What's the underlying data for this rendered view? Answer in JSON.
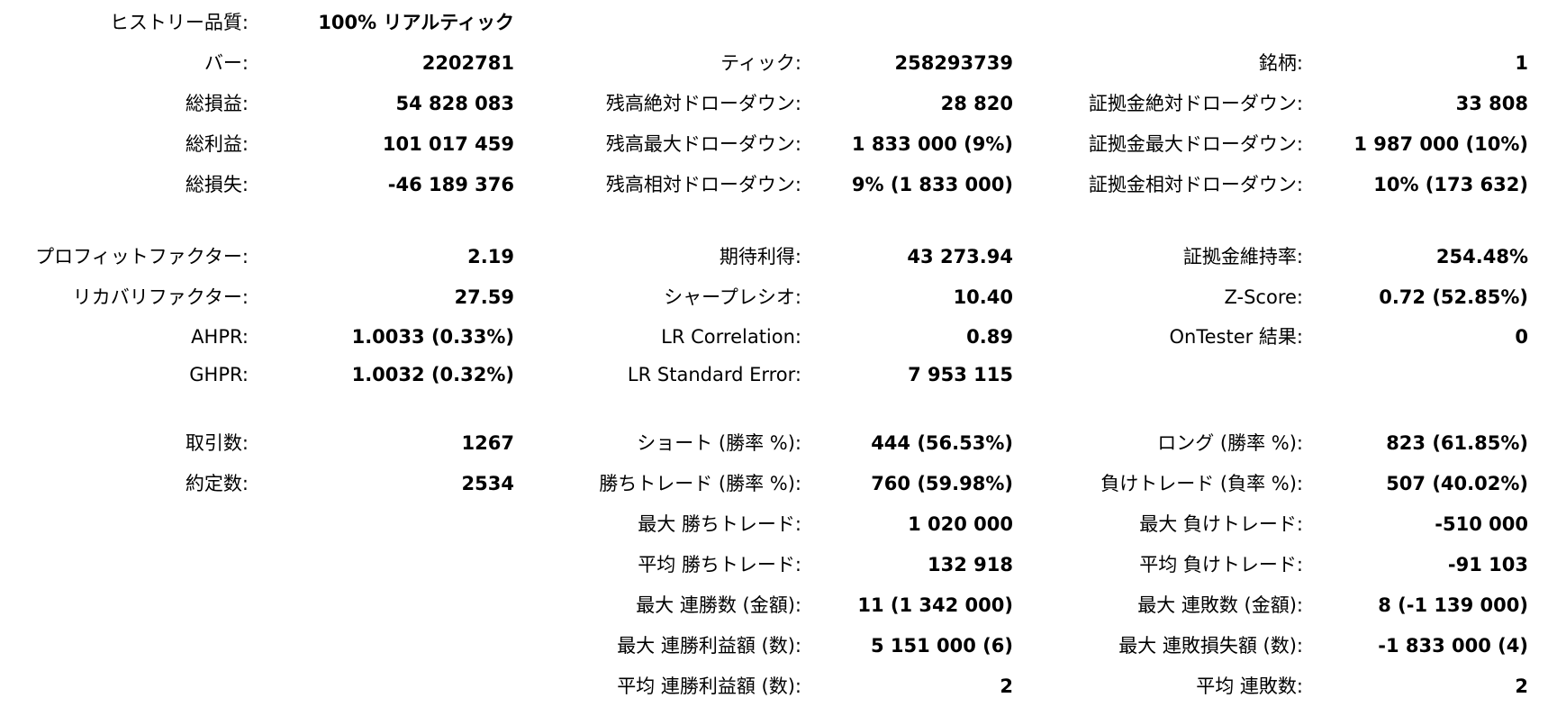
{
  "report": {
    "rows": [
      {
        "c1": {
          "label": "ヒストリー品質:",
          "value": "100% リアルティック"
        },
        "c2": {
          "label": "",
          "value": ""
        },
        "c3": {
          "label": "",
          "value": ""
        }
      },
      {
        "c1": {
          "label": "バー:",
          "value": "2202781"
        },
        "c2": {
          "label": "ティック:",
          "value": "258293739"
        },
        "c3": {
          "label": "銘柄:",
          "value": "1"
        }
      },
      {
        "c1": {
          "label": "総損益:",
          "value": "54 828 083"
        },
        "c2": {
          "label": "残高絶対ドローダウン:",
          "value": "28 820"
        },
        "c3": {
          "label": "証拠金絶対ドローダウン:",
          "value": "33 808"
        }
      },
      {
        "c1": {
          "label": "総利益:",
          "value": "101 017 459"
        },
        "c2": {
          "label": "残高最大ドローダウン:",
          "value": "1 833 000 (9%)"
        },
        "c3": {
          "label": "証拠金最大ドローダウン:",
          "value": "1 987 000 (10%)"
        }
      },
      {
        "c1": {
          "label": "総損失:",
          "value": "-46 189 376"
        },
        "c2": {
          "label": "残高相対ドローダウン:",
          "value": "9% (1 833 000)"
        },
        "c3": {
          "label": "証拠金相対ドローダウン:",
          "value": "10% (173 632)"
        }
      },
      {
        "c1": {
          "label": "プロフィットファクター:",
          "value": "2.19"
        },
        "c2": {
          "label": "期待利得:",
          "value": "43 273.94"
        },
        "c3": {
          "label": "証拠金維持率:",
          "value": "254.48%"
        }
      },
      {
        "c1": {
          "label": "リカバリファクター:",
          "value": "27.59"
        },
        "c2": {
          "label": "シャープレシオ:",
          "value": "10.40"
        },
        "c3": {
          "label": "Z-Score:",
          "value": "0.72 (52.85%)"
        }
      },
      {
        "c1": {
          "label": "AHPR:",
          "value": "1.0033 (0.33%)"
        },
        "c2": {
          "label": "LR Correlation:",
          "value": "0.89"
        },
        "c3": {
          "label": "OnTester 結果:",
          "value": "0"
        }
      },
      {
        "c1": {
          "label": "GHPR:",
          "value": "1.0032 (0.32%)"
        },
        "c2": {
          "label": "LR Standard Error:",
          "value": "7 953 115"
        },
        "c3": {
          "label": "",
          "value": ""
        }
      },
      {
        "c1": {
          "label": "取引数:",
          "value": "1267"
        },
        "c2": {
          "label": "ショート (勝率 %):",
          "value": "444 (56.53%)"
        },
        "c3": {
          "label": "ロング (勝率 %):",
          "value": "823 (61.85%)"
        }
      },
      {
        "c1": {
          "label": "約定数:",
          "value": "2534"
        },
        "c2": {
          "label": "勝ちトレード (勝率 %):",
          "value": "760 (59.98%)"
        },
        "c3": {
          "label": "負けトレード (負率 %):",
          "value": "507 (40.02%)"
        }
      },
      {
        "c1": {
          "label": "",
          "value": ""
        },
        "c2": {
          "label": "最大 勝ちトレード:",
          "value": "1 020 000"
        },
        "c3": {
          "label": "最大 負けトレード:",
          "value": "-510 000"
        }
      },
      {
        "c1": {
          "label": "",
          "value": ""
        },
        "c2": {
          "label": "平均 勝ちトレード:",
          "value": "132 918"
        },
        "c3": {
          "label": "平均 負けトレード:",
          "value": "-91 103"
        }
      },
      {
        "c1": {
          "label": "",
          "value": ""
        },
        "c2": {
          "label": "最大 連勝数 (金額):",
          "value": "11 (1 342 000)"
        },
        "c3": {
          "label": "最大 連敗数 (金額):",
          "value": "8 (-1 139 000)"
        }
      },
      {
        "c1": {
          "label": "",
          "value": ""
        },
        "c2": {
          "label": "最大 連勝利益額 (数):",
          "value": "5 151 000 (6)"
        },
        "c3": {
          "label": "最大 連敗損失額 (数):",
          "value": "-1 833 000 (4)"
        }
      },
      {
        "c1": {
          "label": "",
          "value": ""
        },
        "c2": {
          "label": "平均 連勝利益額 (数):",
          "value": "2"
        },
        "c3": {
          "label": "平均 連敗数:",
          "value": "2"
        }
      }
    ]
  }
}
